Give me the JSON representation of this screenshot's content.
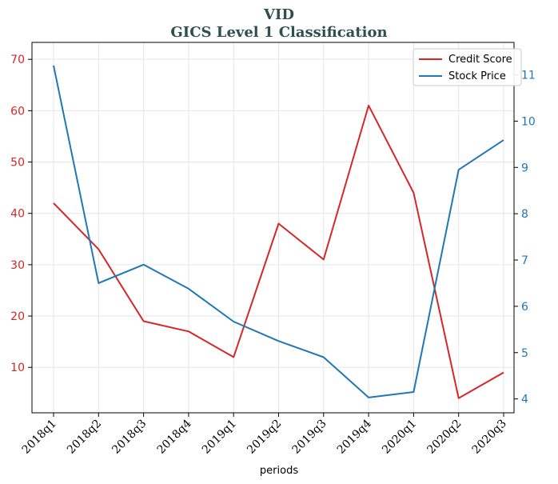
{
  "chart_data": {
    "type": "line",
    "title": "VID",
    "subtitle": "GICS Level 1 Classification",
    "xlabel": "periods",
    "ylabel_left": "",
    "ylabel_right": "",
    "categories": [
      "2018q1",
      "2018q2",
      "2018q3",
      "2018q4",
      "2019q1",
      "2019q2",
      "2019q3",
      "2019q4",
      "2020q1",
      "2020q2",
      "2020q3"
    ],
    "series": [
      {
        "name": "Credit Score",
        "axis": "left",
        "color": "#d62728",
        "values": [
          42,
          33,
          19,
          17,
          12,
          38,
          31,
          61,
          44,
          4,
          9
        ]
      },
      {
        "name": "Stock Price",
        "axis": "right",
        "color": "#1f77b4",
        "values": [
          11.2,
          6.5,
          6.9,
          6.38,
          5.67,
          5.25,
          4.9,
          4.03,
          4.15,
          8.95,
          9.59
        ]
      }
    ],
    "ylim_left": [
      1.15,
      73.3
    ],
    "ylim_right": [
      3.7,
      11.7
    ],
    "yticks_left": [
      10,
      20,
      30,
      40,
      50,
      60,
      70
    ],
    "yticks_right": [
      4,
      5,
      6,
      7,
      8,
      9,
      10,
      11
    ],
    "left_tick_color": "#d62728",
    "right_tick_color": "#1f77b4",
    "title_color": "#2f4f4f",
    "grid": true,
    "legend_position": "top-right"
  }
}
